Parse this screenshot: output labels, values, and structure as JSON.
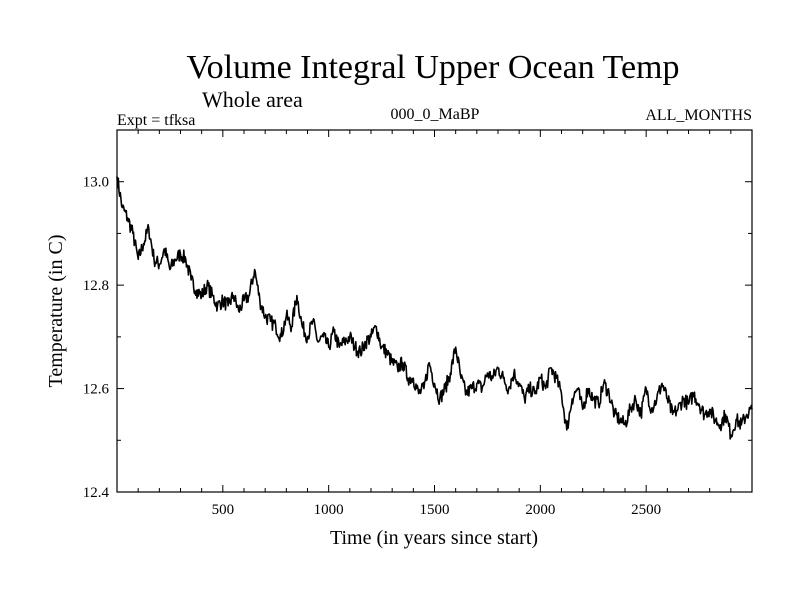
{
  "chart_data": {
    "type": "line",
    "title": "Volume Integral Upper Ocean Temp",
    "subtitle": "Whole area",
    "expt_label": "Expt = tfksa",
    "period_label": "000_0_MaBP",
    "months_label": "ALL_MONTHS",
    "xlabel": "Time (in years since start)",
    "ylabel": "Temperature (in C)",
    "xlim": [
      0,
      3000
    ],
    "ylim": [
      12.4,
      13.1
    ],
    "x_ticks": [
      500,
      1000,
      1500,
      2000,
      2500
    ],
    "x_tick_labels": [
      "500",
      "1000",
      "1500",
      "2000",
      "2500"
    ],
    "y_ticks": [
      12.4,
      12.6,
      12.8,
      13.0
    ],
    "y_tick_labels": [
      "12.4",
      "12.6",
      "12.8",
      "13.0"
    ],
    "grid": false,
    "series": [
      {
        "name": "Volume integral upper ocean temperature",
        "color": "#000000",
        "x": [
          0,
          25,
          50,
          75,
          100,
          125,
          150,
          175,
          200,
          225,
          250,
          275,
          300,
          325,
          350,
          375,
          400,
          425,
          450,
          475,
          500,
          525,
          550,
          575,
          600,
          625,
          650,
          675,
          700,
          725,
          750,
          775,
          800,
          825,
          850,
          875,
          900,
          925,
          950,
          975,
          1000,
          1025,
          1050,
          1075,
          1100,
          1125,
          1150,
          1175,
          1200,
          1225,
          1250,
          1275,
          1300,
          1325,
          1350,
          1375,
          1400,
          1425,
          1450,
          1475,
          1500,
          1525,
          1550,
          1575,
          1600,
          1625,
          1650,
          1675,
          1700,
          1725,
          1750,
          1775,
          1800,
          1825,
          1850,
          1875,
          1900,
          1925,
          1950,
          1975,
          2000,
          2025,
          2050,
          2075,
          2100,
          2125,
          2150,
          2175,
          2200,
          2225,
          2250,
          2275,
          2300,
          2325,
          2350,
          2375,
          2400,
          2425,
          2450,
          2475,
          2500,
          2525,
          2550,
          2575,
          2600,
          2625,
          2650,
          2675,
          2700,
          2725,
          2750,
          2775,
          2800,
          2825,
          2850,
          2875,
          2900,
          2925,
          2950,
          2975,
          3000
        ],
        "values": [
          13.01,
          12.95,
          12.93,
          12.9,
          12.85,
          12.88,
          12.91,
          12.85,
          12.84,
          12.87,
          12.83,
          12.85,
          12.86,
          12.85,
          12.81,
          12.79,
          12.78,
          12.8,
          12.78,
          12.76,
          12.77,
          12.76,
          12.78,
          12.75,
          12.77,
          12.78,
          12.83,
          12.77,
          12.74,
          12.73,
          12.72,
          12.7,
          12.74,
          12.72,
          12.78,
          12.72,
          12.7,
          12.73,
          12.69,
          12.7,
          12.68,
          12.71,
          12.68,
          12.69,
          12.7,
          12.68,
          12.67,
          12.69,
          12.7,
          12.72,
          12.68,
          12.67,
          12.65,
          12.64,
          12.65,
          12.62,
          12.62,
          12.59,
          12.6,
          12.65,
          12.61,
          12.58,
          12.6,
          12.63,
          12.68,
          12.62,
          12.59,
          12.6,
          12.61,
          12.6,
          12.63,
          12.62,
          12.64,
          12.62,
          12.6,
          12.63,
          12.61,
          12.58,
          12.6,
          12.59,
          12.62,
          12.6,
          12.64,
          12.62,
          12.59,
          12.52,
          12.58,
          12.6,
          12.56,
          12.6,
          12.58,
          12.57,
          12.61,
          12.59,
          12.55,
          12.54,
          12.53,
          12.56,
          12.58,
          12.55,
          12.6,
          12.56,
          12.58,
          12.61,
          12.58,
          12.55,
          12.56,
          12.58,
          12.57,
          12.59,
          12.57,
          12.55,
          12.56,
          12.54,
          12.53,
          12.55,
          12.51,
          12.54,
          12.53,
          12.55,
          12.56
        ]
      }
    ]
  }
}
